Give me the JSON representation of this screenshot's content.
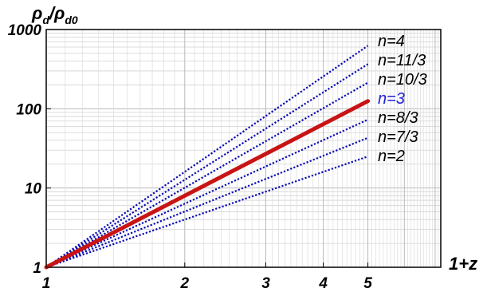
{
  "chart_data": {
    "type": "line",
    "title": "",
    "xlabel": "1+z",
    "ylabel": {
      "rho": "ρ",
      "d": "d",
      "slash": "/",
      "d0": "d0"
    },
    "x_scale": "log",
    "y_scale": "log",
    "xlim": [
      1,
      7.2
    ],
    "ylim": [
      1,
      1000
    ],
    "x_ticks": [
      1,
      2,
      3,
      4,
      5
    ],
    "x_tick_labels": [
      "1",
      "2",
      "3",
      "4",
      "5"
    ],
    "y_ticks": [
      1,
      10,
      100,
      1000
    ],
    "y_tick_labels": [
      "1",
      "10",
      "100",
      "1000"
    ],
    "grid": true,
    "x": [
      1,
      5
    ],
    "series": [
      {
        "name": "n=4",
        "exponent": 4,
        "values": [
          1,
          625
        ],
        "style": "dotted",
        "color": "#0a0ab4"
      },
      {
        "name": "n=11/3",
        "exponent": 3.6667,
        "values": [
          1,
          366
        ],
        "style": "dotted",
        "color": "#0a0ab4"
      },
      {
        "name": "n=10/3",
        "exponent": 3.3333,
        "values": [
          1,
          214
        ],
        "style": "dotted",
        "color": "#0a0ab4"
      },
      {
        "name": "n=3",
        "exponent": 3,
        "values": [
          1,
          125
        ],
        "style": "solid-thick",
        "color": "#c81414",
        "label_color": "#2222d6"
      },
      {
        "name": "n=8/3",
        "exponent": 2.6667,
        "values": [
          1,
          73
        ],
        "style": "dotted",
        "color": "#0a0ab4"
      },
      {
        "name": "n=7/3",
        "exponent": 2.3333,
        "values": [
          1,
          43
        ],
        "style": "dotted",
        "color": "#0a0ab4"
      },
      {
        "name": "n=2",
        "exponent": 2,
        "values": [
          1,
          25
        ],
        "style": "dotted",
        "color": "#0a0ab4"
      }
    ]
  }
}
